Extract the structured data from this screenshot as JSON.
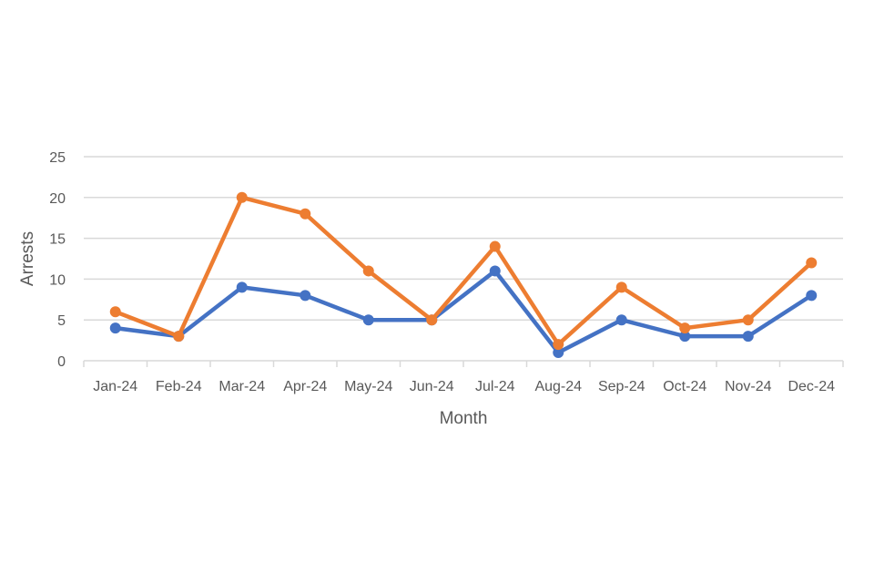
{
  "chart_data": {
    "type": "line",
    "title": "",
    "xlabel": "Month",
    "ylabel": "Arrests",
    "categories": [
      "Jan-24",
      "Feb-24",
      "Mar-24",
      "Apr-24",
      "May-24",
      "Jun-24",
      "Jul-24",
      "Aug-24",
      "Sep-24",
      "Oct-24",
      "Nov-24",
      "Dec-24"
    ],
    "ylim": [
      0,
      25
    ],
    "yticks": [
      0,
      5,
      10,
      15,
      20,
      25
    ],
    "grid": true,
    "legend": "none",
    "series": [
      {
        "color": "#4472c4",
        "values": [
          4,
          3,
          9,
          8,
          5,
          5,
          11,
          1,
          5,
          3,
          3,
          8
        ]
      },
      {
        "color": "#ed7d31",
        "values": [
          6,
          3,
          20,
          18,
          11,
          5,
          14,
          2,
          9,
          4,
          5,
          12
        ]
      }
    ]
  }
}
